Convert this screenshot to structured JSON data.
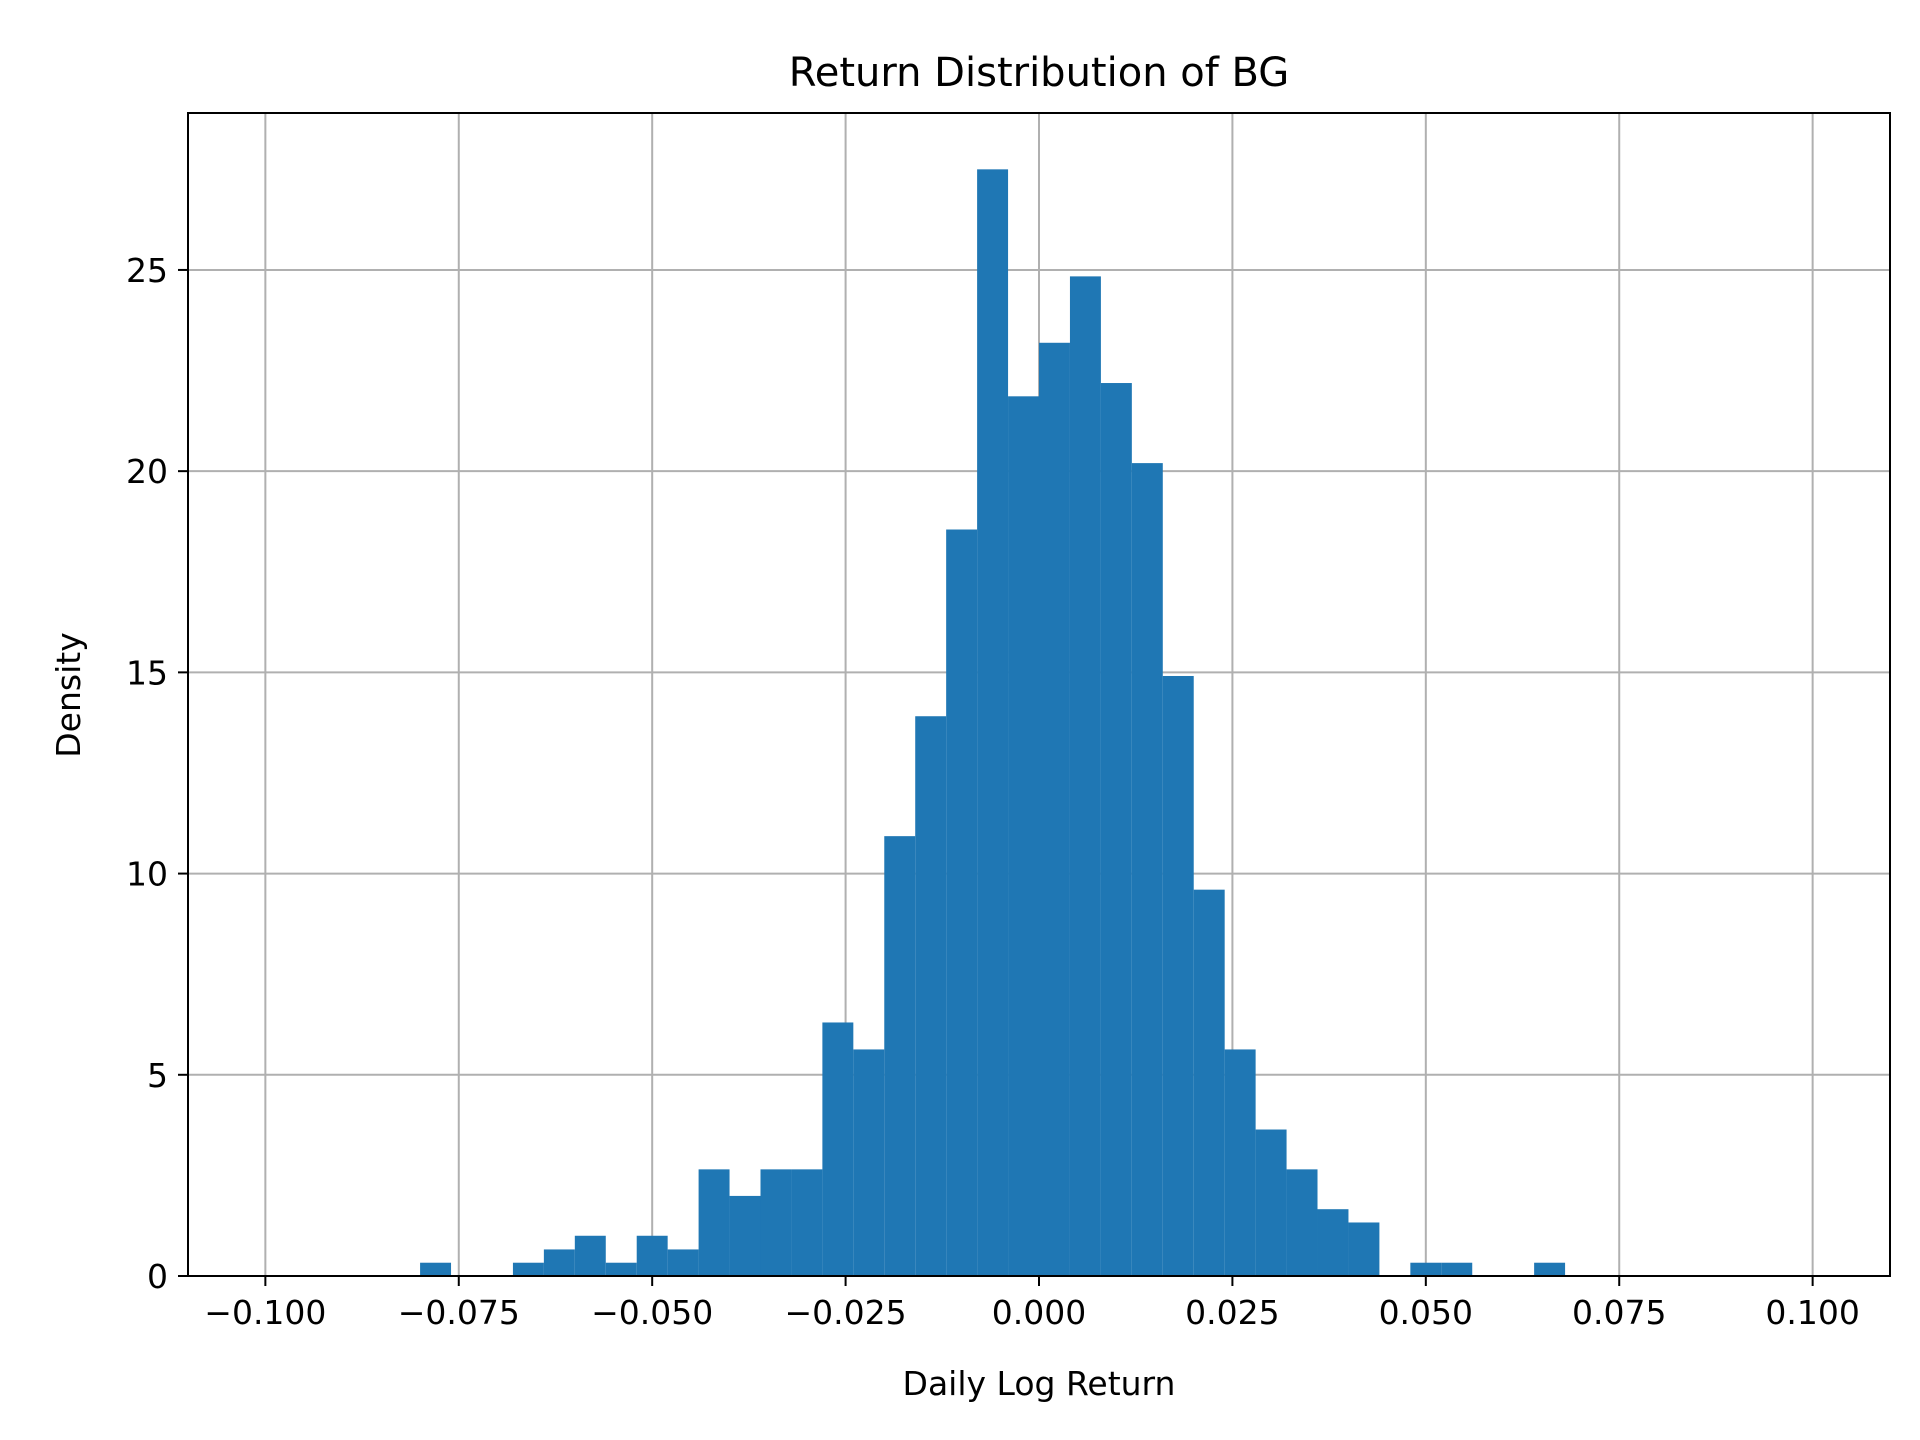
{
  "chart_data": {
    "type": "bar",
    "title": "Return Distribution of BG",
    "xlabel": "Daily Log Return",
    "ylabel": "Density",
    "xlim": [
      -0.11,
      0.11
    ],
    "ylim": [
      0,
      28.9
    ],
    "grid": true,
    "bar_color": "#1f77b4",
    "grid_color": "#b0b0b0",
    "x_ticks": [
      {
        "value": -0.1,
        "label": "−0.100"
      },
      {
        "value": -0.075,
        "label": "−0.075"
      },
      {
        "value": -0.05,
        "label": "−0.050"
      },
      {
        "value": -0.025,
        "label": "−0.025"
      },
      {
        "value": 0.0,
        "label": "0.000"
      },
      {
        "value": 0.025,
        "label": "0.025"
      },
      {
        "value": 0.05,
        "label": "0.050"
      },
      {
        "value": 0.075,
        "label": "0.075"
      },
      {
        "value": 0.1,
        "label": "0.100"
      }
    ],
    "y_ticks": [
      {
        "value": 0,
        "label": "0"
      },
      {
        "value": 5,
        "label": "5"
      },
      {
        "value": 10,
        "label": "10"
      },
      {
        "value": 15,
        "label": "15"
      },
      {
        "value": 20,
        "label": "20"
      },
      {
        "value": 25,
        "label": "25"
      }
    ],
    "bins": [
      {
        "x0": -0.08,
        "x1": -0.076,
        "density": 0.33
      },
      {
        "x0": -0.068,
        "x1": -0.064,
        "density": 0.33
      },
      {
        "x0": -0.064,
        "x1": -0.06,
        "density": 0.66
      },
      {
        "x0": -0.06,
        "x1": -0.056,
        "density": 1.0
      },
      {
        "x0": -0.056,
        "x1": -0.052,
        "density": 0.33
      },
      {
        "x0": -0.052,
        "x1": -0.048,
        "density": 1.0
      },
      {
        "x0": -0.048,
        "x1": -0.044,
        "density": 0.66
      },
      {
        "x0": -0.044,
        "x1": -0.04,
        "density": 2.65
      },
      {
        "x0": -0.04,
        "x1": -0.036,
        "density": 1.99
      },
      {
        "x0": -0.036,
        "x1": -0.032,
        "density": 2.65
      },
      {
        "x0": -0.032,
        "x1": -0.028,
        "density": 2.65
      },
      {
        "x0": -0.028,
        "x1": -0.024,
        "density": 6.3
      },
      {
        "x0": -0.024,
        "x1": -0.02,
        "density": 5.63
      },
      {
        "x0": -0.02,
        "x1": -0.016,
        "density": 10.93
      },
      {
        "x0": -0.016,
        "x1": -0.012,
        "density": 13.91
      },
      {
        "x0": -0.012,
        "x1": -0.008,
        "density": 18.55
      },
      {
        "x0": -0.008,
        "x1": -0.004,
        "density": 27.5
      },
      {
        "x0": -0.004,
        "x1": 0.0,
        "density": 21.86
      },
      {
        "x0": 0.0,
        "x1": 0.004,
        "density": 23.19
      },
      {
        "x0": 0.004,
        "x1": 0.008,
        "density": 24.84
      },
      {
        "x0": 0.008,
        "x1": 0.012,
        "density": 22.19
      },
      {
        "x0": 0.012,
        "x1": 0.016,
        "density": 20.2
      },
      {
        "x0": 0.016,
        "x1": 0.02,
        "density": 14.91
      },
      {
        "x0": 0.02,
        "x1": 0.024,
        "density": 9.6
      },
      {
        "x0": 0.024,
        "x1": 0.028,
        "density": 5.63
      },
      {
        "x0": 0.028,
        "x1": 0.032,
        "density": 3.64
      },
      {
        "x0": 0.032,
        "x1": 0.036,
        "density": 2.65
      },
      {
        "x0": 0.036,
        "x1": 0.04,
        "density": 1.66
      },
      {
        "x0": 0.04,
        "x1": 0.044,
        "density": 1.33
      },
      {
        "x0": 0.048,
        "x1": 0.052,
        "density": 0.33
      },
      {
        "x0": 0.052,
        "x1": 0.056,
        "density": 0.33
      },
      {
        "x0": 0.064,
        "x1": 0.068,
        "density": 0.33
      }
    ]
  }
}
